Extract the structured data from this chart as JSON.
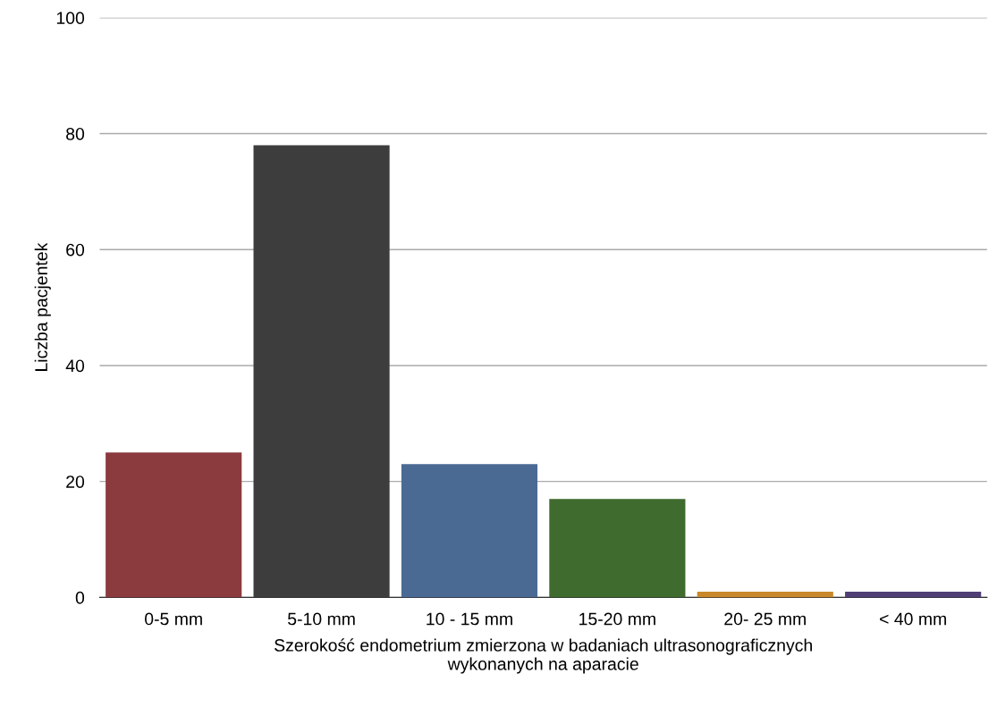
{
  "chart_data": {
    "type": "bar",
    "xlabel": "Szerokość endometrium zmierzona w badaniach ultrasonograficznych\nwykonanych na aparacie",
    "ylabel": "Liczba pacjentek",
    "categories": [
      "0-5 mm",
      "5-10 mm",
      "10 - 15 mm",
      "15-20 mm",
      "20- 25 mm",
      "< 40 mm"
    ],
    "values": [
      25,
      78,
      23,
      17,
      1,
      1
    ],
    "colors": [
      "#8b3a3e",
      "#3d3d3d",
      "#4a6a94",
      "#3f6b2e",
      "#c9882a",
      "#4f3f75"
    ],
    "ylim": [
      0,
      100
    ],
    "yticks": [
      0,
      20,
      40,
      60,
      80,
      100
    ],
    "grid": "y"
  }
}
